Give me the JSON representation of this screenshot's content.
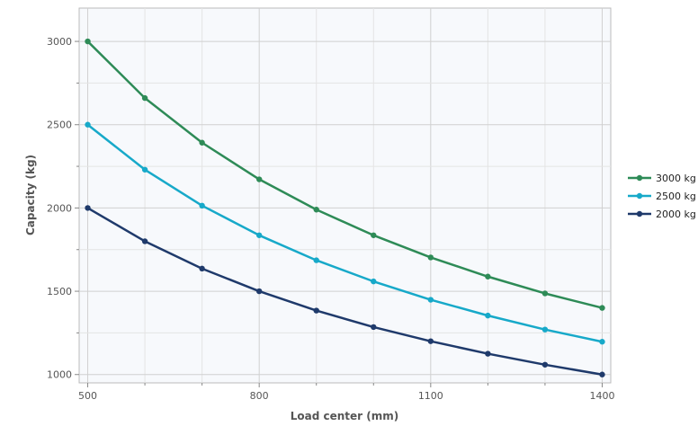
{
  "chart_data": {
    "type": "line",
    "xlabel": "Load center (mm)",
    "ylabel": "Capacity (kg)",
    "x": [
      500,
      600,
      700,
      800,
      900,
      1000,
      1100,
      1200,
      1300,
      1400
    ],
    "x_ticks": [
      500,
      800,
      1100,
      1400
    ],
    "y_ticks": [
      1000,
      1500,
      2000,
      2500,
      3000
    ],
    "xlim": [
      485,
      1415
    ],
    "ylim": [
      950,
      3200
    ],
    "grid": true,
    "legend_position": "right",
    "series": [
      {
        "name": "3000 kg",
        "color": "#2e8b57",
        "values": [
          3000,
          2660,
          2392,
          2172,
          1990,
          1836,
          1703,
          1588,
          1487,
          1400
        ]
      },
      {
        "name": "2500 kg",
        "color": "#17a9c9",
        "values": [
          2500,
          2230,
          2014,
          1836,
          1686,
          1559,
          1449,
          1354,
          1270,
          1197
        ]
      },
      {
        "name": "2000 kg",
        "color": "#1f3a6b",
        "values": [
          2000,
          1800,
          1636,
          1500,
          1384,
          1285,
          1200,
          1125,
          1059,
          1000
        ]
      }
    ]
  }
}
